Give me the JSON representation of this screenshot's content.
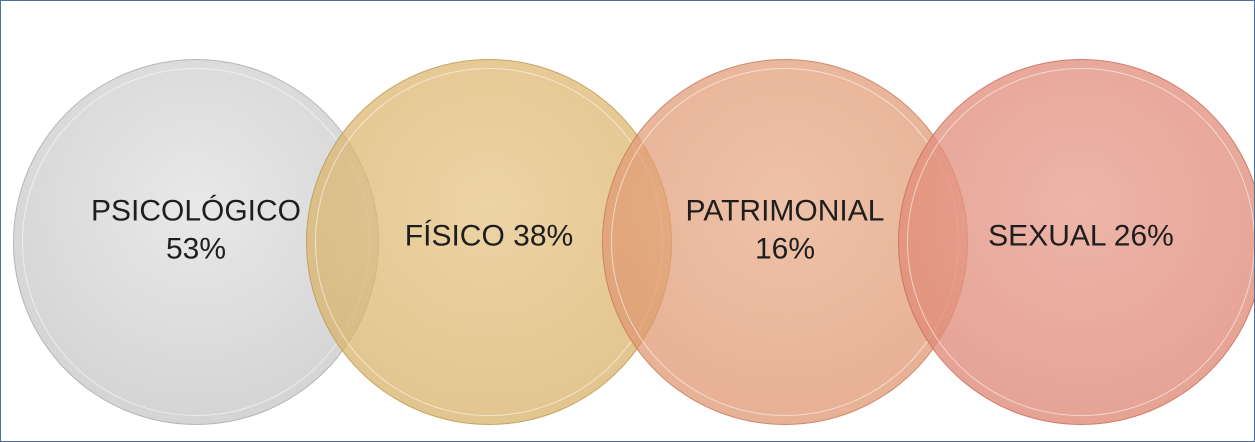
{
  "nodes": [
    {
      "label": "PSICOLÓGICO 53%"
    },
    {
      "label": "FÍSICO 38%"
    },
    {
      "label": "PATRIMONIAL 16%"
    },
    {
      "label": "SEXUAL 26%"
    }
  ]
}
